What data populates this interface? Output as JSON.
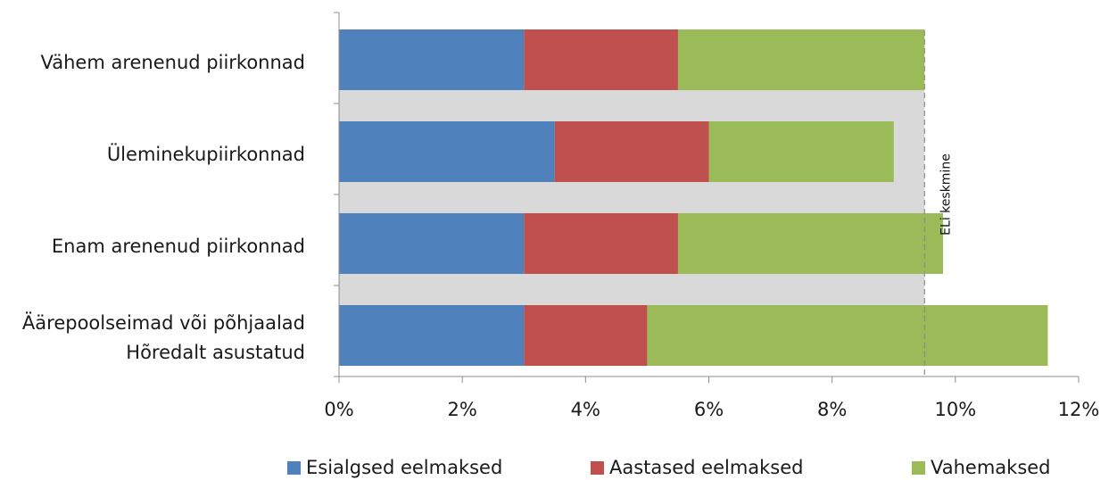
{
  "chart_data": {
    "type": "bar",
    "orientation": "horizontal",
    "stacked": true,
    "categories": [
      "Vähem arenenud piirkonnad",
      "Üleminekupiirkonnad",
      "Enam arenenud piirkonnad",
      "Äärepoolseimad või põhjaalad Hõredalt asustatud"
    ],
    "category_lines": [
      [
        "Vähem arenenud piirkonnad"
      ],
      [
        "Üleminekupiirkonnad"
      ],
      [
        "Enam arenenud piirkonnad"
      ],
      [
        "Äärepoolseimad või põhjaalad",
        "Hõredalt asustatud"
      ]
    ],
    "series": [
      {
        "name": "Esialgsed eelmaksed",
        "color": "#4f81bd",
        "values": [
          3.0,
          3.5,
          3.0,
          3.0
        ]
      },
      {
        "name": "Aastased eelmaksed",
        "color": "#c0504d",
        "values": [
          2.5,
          2.5,
          2.5,
          2.0
        ]
      },
      {
        "name": "Vahemaksed",
        "color": "#9bbb59",
        "values": [
          4.0,
          3.0,
          4.3,
          6.5
        ]
      }
    ],
    "background_series_color": "#d9d9d9",
    "reference_line": {
      "label": "ELi keskmine",
      "value": 9.5
    },
    "xlim": [
      0,
      12
    ],
    "x_ticks": [
      "0%",
      "2%",
      "4%",
      "6%",
      "8%",
      "10%",
      "12%"
    ],
    "x_tick_values": [
      0,
      2,
      4,
      6,
      8,
      10,
      12
    ],
    "grid": false,
    "legend_position": "bottom"
  }
}
